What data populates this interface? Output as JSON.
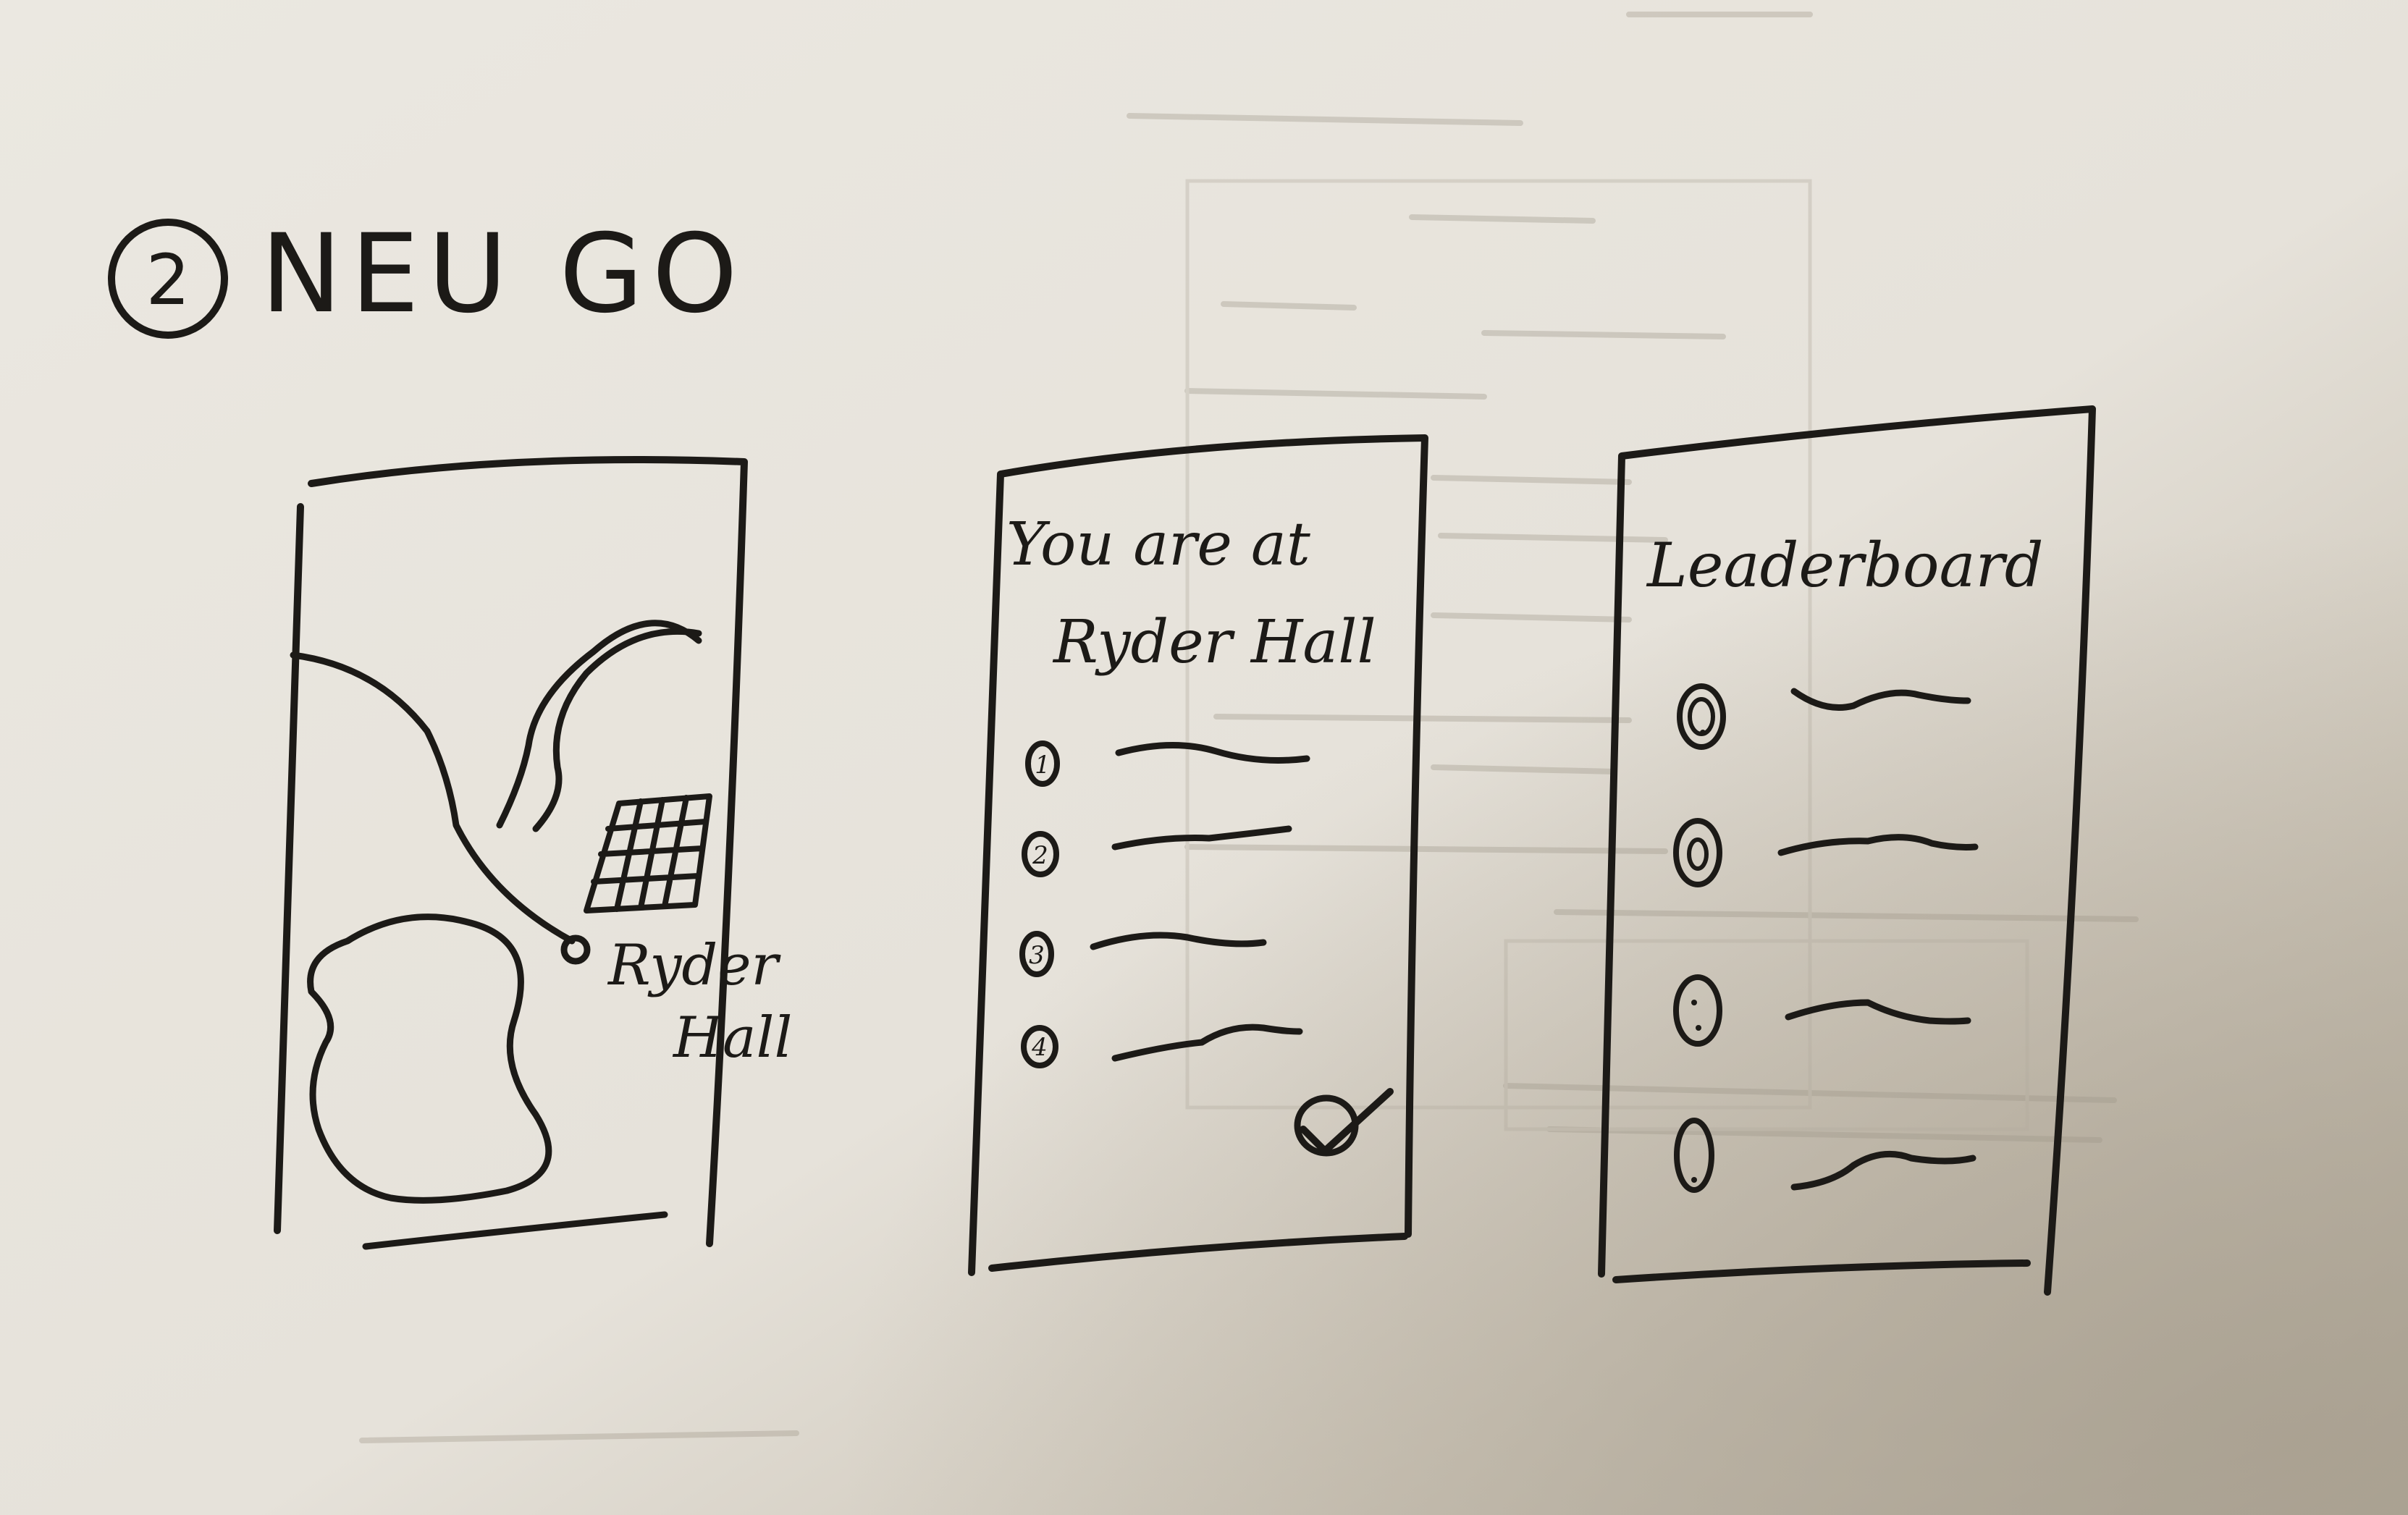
{
  "sketch": {
    "title": {
      "number": "2",
      "text": "NEU GO"
    },
    "map_screen": {
      "location_label_line1": "Ryder",
      "location_label_line2": "Hall"
    },
    "checkin_screen": {
      "heading_line1": "You are at",
      "heading_line2": "Ryder Hall",
      "items": [
        {
          "number": "1"
        },
        {
          "number": "2"
        },
        {
          "number": "3"
        },
        {
          "number": "4"
        }
      ],
      "confirm_icon": "checkmark-icon"
    },
    "leaderboard_screen": {
      "heading": "Leaderboard",
      "rows": [
        {
          "icon": "face-icon"
        },
        {
          "icon": "face-icon"
        },
        {
          "icon": "face-icon"
        },
        {
          "icon": "face-icon"
        }
      ]
    }
  },
  "colors": {
    "ink": "#1c1a17",
    "paper_light": "#e9e6df",
    "paper_shadow": "#b8b0a1"
  }
}
